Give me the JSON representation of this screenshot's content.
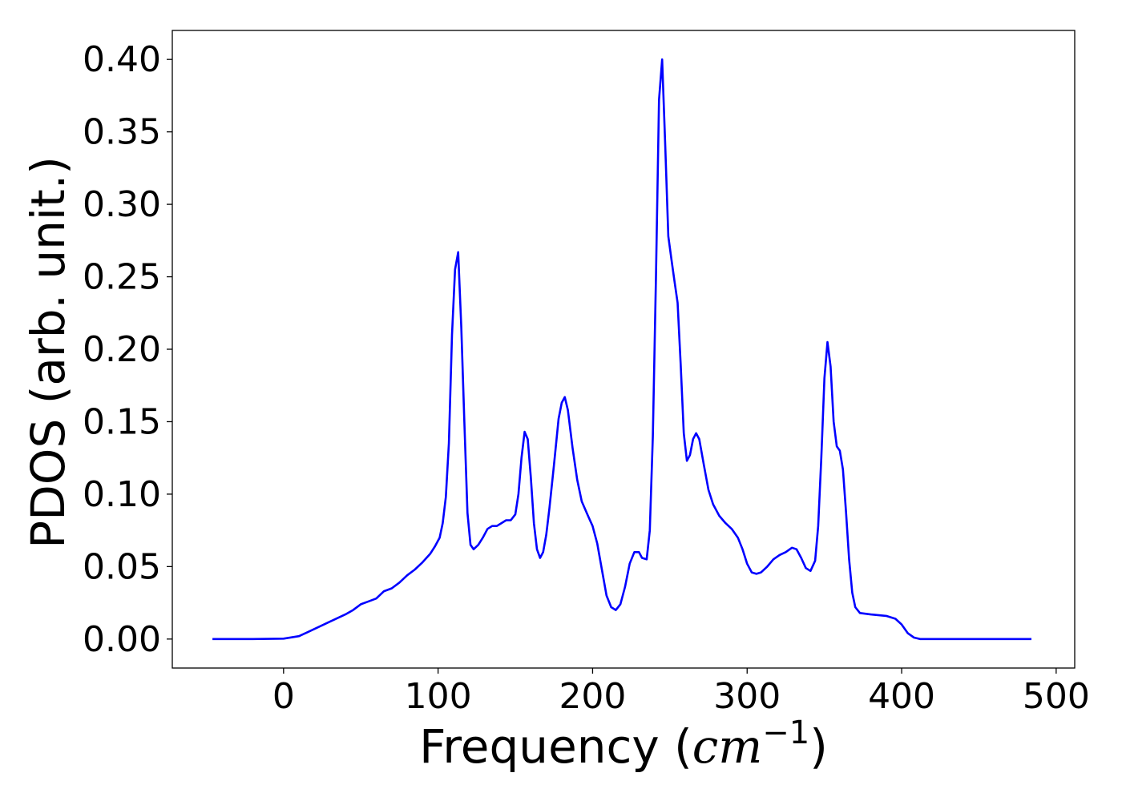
{
  "chart_data": {
    "type": "line",
    "xlabel_main": "Frequency (",
    "xlabel_unit_base": "cm",
    "xlabel_unit_exp": "−1",
    "xlabel_close": ")",
    "ylabel": "PDOS (arb. unit.)",
    "xlim": [
      -72,
      512
    ],
    "ylim": [
      -0.02,
      0.42
    ],
    "xticks": [
      0,
      100,
      200,
      300,
      400,
      500
    ],
    "yticks": [
      0.0,
      0.05,
      0.1,
      0.15,
      0.2,
      0.25,
      0.3,
      0.35,
      0.4
    ],
    "xtick_labels": [
      "0",
      "100",
      "200",
      "300",
      "400",
      "500"
    ],
    "ytick_labels": [
      "0.00",
      "0.05",
      "0.10",
      "0.15",
      "0.20",
      "0.25",
      "0.30",
      "0.35",
      "0.40"
    ],
    "grid": false,
    "series": [
      {
        "color": "#0000ff",
        "points": [
          [
            -46,
            0.0
          ],
          [
            -20,
            0.0
          ],
          [
            0,
            0.0003
          ],
          [
            10,
            0.002
          ],
          [
            20,
            0.007
          ],
          [
            30,
            0.012
          ],
          [
            40,
            0.017
          ],
          [
            45,
            0.02
          ],
          [
            50,
            0.024
          ],
          [
            55,
            0.026
          ],
          [
            60,
            0.028
          ],
          [
            65,
            0.033
          ],
          [
            70,
            0.035
          ],
          [
            75,
            0.039
          ],
          [
            80,
            0.044
          ],
          [
            85,
            0.048
          ],
          [
            90,
            0.053
          ],
          [
            95,
            0.059
          ],
          [
            98,
            0.064
          ],
          [
            101,
            0.07
          ],
          [
            103,
            0.08
          ],
          [
            105,
            0.098
          ],
          [
            107,
            0.135
          ],
          [
            109,
            0.21
          ],
          [
            111,
            0.255
          ],
          [
            113,
            0.267
          ],
          [
            115,
            0.215
          ],
          [
            117,
            0.15
          ],
          [
            119,
            0.087
          ],
          [
            121,
            0.065
          ],
          [
            123,
            0.062
          ],
          [
            126,
            0.065
          ],
          [
            129,
            0.07
          ],
          [
            132,
            0.076
          ],
          [
            135,
            0.078
          ],
          [
            138,
            0.078
          ],
          [
            141,
            0.08
          ],
          [
            144,
            0.082
          ],
          [
            147,
            0.082
          ],
          [
            150,
            0.086
          ],
          [
            152,
            0.1
          ],
          [
            154,
            0.125
          ],
          [
            156,
            0.143
          ],
          [
            158,
            0.138
          ],
          [
            160,
            0.112
          ],
          [
            162,
            0.08
          ],
          [
            164,
            0.062
          ],
          [
            166,
            0.056
          ],
          [
            168,
            0.06
          ],
          [
            170,
            0.072
          ],
          [
            172,
            0.09
          ],
          [
            175,
            0.12
          ],
          [
            178,
            0.152
          ],
          [
            180,
            0.163
          ],
          [
            182,
            0.167
          ],
          [
            184,
            0.158
          ],
          [
            187,
            0.132
          ],
          [
            190,
            0.11
          ],
          [
            193,
            0.095
          ],
          [
            197,
            0.085
          ],
          [
            200,
            0.078
          ],
          [
            203,
            0.066
          ],
          [
            206,
            0.048
          ],
          [
            209,
            0.03
          ],
          [
            212,
            0.022
          ],
          [
            215,
            0.02
          ],
          [
            218,
            0.024
          ],
          [
            221,
            0.036
          ],
          [
            224,
            0.052
          ],
          [
            227,
            0.06
          ],
          [
            230,
            0.06
          ],
          [
            232,
            0.056
          ],
          [
            235,
            0.055
          ],
          [
            237,
            0.075
          ],
          [
            239,
            0.14
          ],
          [
            241,
            0.25
          ],
          [
            243,
            0.372
          ],
          [
            245,
            0.4
          ],
          [
            247,
            0.34
          ],
          [
            249,
            0.278
          ],
          [
            251,
            0.262
          ],
          [
            253,
            0.247
          ],
          [
            255,
            0.232
          ],
          [
            257,
            0.19
          ],
          [
            259,
            0.142
          ],
          [
            261,
            0.123
          ],
          [
            263,
            0.127
          ],
          [
            265,
            0.138
          ],
          [
            267,
            0.142
          ],
          [
            269,
            0.138
          ],
          [
            272,
            0.12
          ],
          [
            275,
            0.103
          ],
          [
            278,
            0.093
          ],
          [
            282,
            0.085
          ],
          [
            286,
            0.08
          ],
          [
            290,
            0.076
          ],
          [
            294,
            0.07
          ],
          [
            297,
            0.062
          ],
          [
            300,
            0.052
          ],
          [
            303,
            0.046
          ],
          [
            306,
            0.045
          ],
          [
            309,
            0.046
          ],
          [
            313,
            0.05
          ],
          [
            317,
            0.055
          ],
          [
            321,
            0.058
          ],
          [
            325,
            0.06
          ],
          [
            329,
            0.063
          ],
          [
            332,
            0.062
          ],
          [
            335,
            0.056
          ],
          [
            338,
            0.049
          ],
          [
            341,
            0.047
          ],
          [
            344,
            0.054
          ],
          [
            346,
            0.078
          ],
          [
            348,
            0.125
          ],
          [
            350,
            0.18
          ],
          [
            352,
            0.205
          ],
          [
            354,
            0.188
          ],
          [
            356,
            0.15
          ],
          [
            358,
            0.133
          ],
          [
            360,
            0.13
          ],
          [
            362,
            0.117
          ],
          [
            364,
            0.088
          ],
          [
            366,
            0.055
          ],
          [
            368,
            0.032
          ],
          [
            370,
            0.022
          ],
          [
            373,
            0.018
          ],
          [
            380,
            0.017
          ],
          [
            390,
            0.016
          ],
          [
            396,
            0.014
          ],
          [
            400,
            0.01
          ],
          [
            404,
            0.004
          ],
          [
            408,
            0.001
          ],
          [
            412,
            0.0
          ],
          [
            430,
            0.0
          ],
          [
            484,
            0.0
          ]
        ]
      }
    ]
  }
}
